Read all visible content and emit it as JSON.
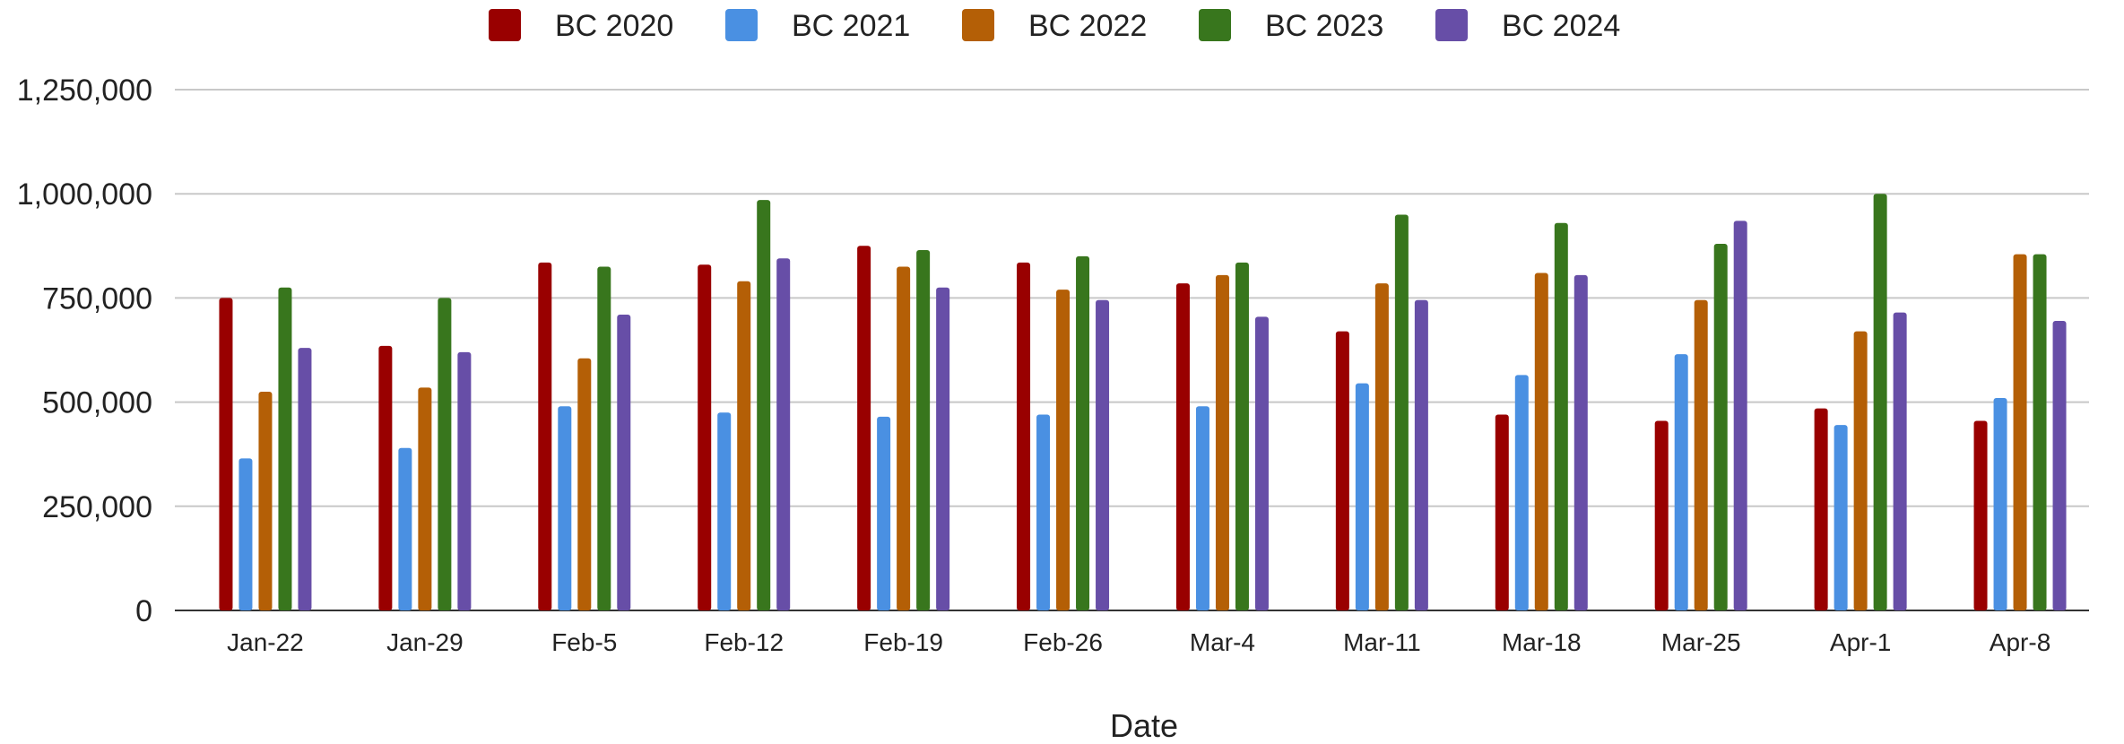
{
  "chart_data": {
    "type": "bar",
    "title": "",
    "xlabel": "Date",
    "ylabel": "",
    "ylim": [
      0,
      1250000
    ],
    "yticks": [
      0,
      250000,
      500000,
      750000,
      1000000,
      1250000
    ],
    "ytick_labels": [
      "0",
      "250,000",
      "500,000",
      "750,000",
      "1,000,000",
      "1,250,000"
    ],
    "grid": true,
    "legend_position": "top-center",
    "categories": [
      "Jan-22",
      "Jan-29",
      "Feb-5",
      "Feb-12",
      "Feb-19",
      "Feb-26",
      "Mar-4",
      "Mar-11",
      "Mar-18",
      "Mar-25",
      "Apr-1",
      "Apr-8"
    ],
    "series": [
      {
        "name": "BC 2020",
        "color": "#990000",
        "values": [
          750000,
          635000,
          835000,
          830000,
          875000,
          835000,
          785000,
          670000,
          470000,
          455000,
          485000,
          455000
        ]
      },
      {
        "name": "BC 2021",
        "color": "#4a90e2",
        "values": [
          365000,
          390000,
          490000,
          475000,
          465000,
          470000,
          490000,
          545000,
          565000,
          615000,
          445000,
          510000
        ]
      },
      {
        "name": "BC 2022",
        "color": "#b45f06",
        "values": [
          525000,
          535000,
          605000,
          790000,
          825000,
          770000,
          805000,
          785000,
          810000,
          745000,
          670000,
          855000
        ]
      },
      {
        "name": "BC 2023",
        "color": "#38761d",
        "values": [
          775000,
          750000,
          825000,
          985000,
          865000,
          850000,
          835000,
          950000,
          930000,
          880000,
          1000000,
          855000
        ]
      },
      {
        "name": "BC 2024",
        "color": "#674ea7",
        "values": [
          630000,
          620000,
          710000,
          845000,
          775000,
          745000,
          705000,
          745000,
          805000,
          935000,
          715000,
          695000
        ]
      }
    ]
  }
}
